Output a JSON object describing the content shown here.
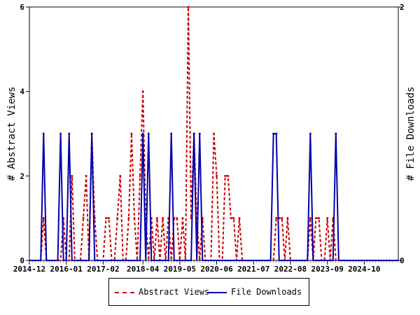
{
  "chart_data": {
    "type": "line",
    "x_labels": [
      "2014-12",
      "2016-01",
      "2017-02",
      "2018-04",
      "2019-05",
      "2020-06",
      "2021-07",
      "2022-08",
      "2023-09",
      "2024-10"
    ],
    "ylabel_left": "# Abstract Views",
    "ylabel_right": "# File Downloads",
    "ylim_left": [
      0,
      6
    ],
    "ylim_right": [
      0,
      2
    ],
    "yticks_left": [
      "0",
      "2",
      "4",
      "6"
    ],
    "yticks_right": [
      "0",
      "2"
    ],
    "grid": false,
    "legend_position": "bottom-center",
    "series": [
      {
        "name": "Abstract Views",
        "axis": "left",
        "color": "#cc0000",
        "style": "dashed",
        "points": [
          [
            "2015-04",
            0
          ],
          [
            "2015-05",
            1
          ],
          [
            "2015-06",
            0
          ],
          [
            "2015-11",
            0
          ],
          [
            "2015-12",
            1
          ],
          [
            "2016-01",
            0
          ],
          [
            "2016-03",
            2
          ],
          [
            "2016-04",
            0
          ],
          [
            "2016-05",
            0
          ],
          [
            "2016-07",
            1
          ],
          [
            "2016-08",
            2
          ],
          [
            "2016-09",
            0
          ],
          [
            "2016-10",
            3
          ],
          [
            "2016-11",
            1
          ],
          [
            "2016-12",
            0
          ],
          [
            "2017-02",
            0
          ],
          [
            "2017-03",
            1
          ],
          [
            "2017-04",
            1
          ],
          [
            "2017-05",
            0
          ],
          [
            "2017-07",
            1
          ],
          [
            "2017-08",
            2
          ],
          [
            "2017-09",
            0
          ],
          [
            "2017-10",
            0
          ],
          [
            "2017-11",
            1
          ],
          [
            "2017-12",
            3
          ],
          [
            "2018-01",
            1
          ],
          [
            "2018-02",
            0
          ],
          [
            "2018-03",
            2
          ],
          [
            "2018-04",
            4
          ],
          [
            "2018-05",
            1
          ],
          [
            "2018-06",
            0
          ],
          [
            "2018-07",
            1
          ],
          [
            "2018-08",
            0
          ],
          [
            "2018-09",
            1
          ],
          [
            "2018-10",
            0
          ],
          [
            "2018-11",
            1
          ],
          [
            "2018-12",
            0
          ],
          [
            "2019-01",
            1
          ],
          [
            "2019-02",
            0
          ],
          [
            "2019-03",
            1
          ],
          [
            "2019-04",
            1
          ],
          [
            "2019-05",
            0
          ],
          [
            "2019-06",
            1
          ],
          [
            "2019-07",
            0
          ],
          [
            "2019-08",
            6
          ],
          [
            "2019-09",
            1
          ],
          [
            "2019-10",
            3
          ],
          [
            "2019-11",
            1
          ],
          [
            "2019-12",
            0
          ],
          [
            "2020-01",
            1
          ],
          [
            "2020-02",
            0
          ],
          [
            "2020-05",
            3
          ],
          [
            "2020-06",
            2
          ],
          [
            "2020-07",
            0
          ],
          [
            "2020-09",
            2
          ],
          [
            "2020-10",
            2
          ],
          [
            "2020-11",
            1
          ],
          [
            "2020-12",
            1
          ],
          [
            "2021-01",
            0
          ],
          [
            "2021-02",
            1
          ],
          [
            "2021-03",
            0
          ],
          [
            "2022-02",
            0
          ],
          [
            "2022-03",
            1
          ],
          [
            "2022-04",
            1
          ],
          [
            "2022-05",
            1
          ],
          [
            "2022-06",
            0
          ],
          [
            "2022-07",
            1
          ],
          [
            "2022-08",
            0
          ],
          [
            "2023-02",
            0
          ],
          [
            "2023-03",
            1
          ],
          [
            "2023-04",
            0
          ],
          [
            "2023-05",
            1
          ],
          [
            "2023-06",
            1
          ],
          [
            "2023-07",
            0
          ],
          [
            "2023-09",
            1
          ],
          [
            "2023-10",
            0
          ],
          [
            "2023-11",
            1
          ],
          [
            "2023-12",
            0
          ]
        ]
      },
      {
        "name": "File Downloads",
        "axis": "right",
        "color": "#0000aa",
        "style": "solid",
        "points": [
          [
            "2015-04",
            0
          ],
          [
            "2015-05",
            1
          ],
          [
            "2015-06",
            0
          ],
          [
            "2015-10",
            0
          ],
          [
            "2015-11",
            1
          ],
          [
            "2015-12",
            0
          ],
          [
            "2016-01",
            0
          ],
          [
            "2016-02",
            1
          ],
          [
            "2016-03",
            0
          ],
          [
            "2016-09",
            0
          ],
          [
            "2016-10",
            1
          ],
          [
            "2016-11",
            0
          ],
          [
            "2018-03",
            0
          ],
          [
            "2018-04",
            1
          ],
          [
            "2018-05",
            0
          ],
          [
            "2018-06",
            1
          ],
          [
            "2018-07",
            0
          ],
          [
            "2019-01",
            0
          ],
          [
            "2019-02",
            1
          ],
          [
            "2019-03",
            0
          ],
          [
            "2019-09",
            0
          ],
          [
            "2019-10",
            1
          ],
          [
            "2019-11",
            0
          ],
          [
            "2019-12",
            1
          ],
          [
            "2020-01",
            0
          ],
          [
            "2022-01",
            0
          ],
          [
            "2022-02",
            1
          ],
          [
            "2022-03",
            1
          ],
          [
            "2022-04",
            0
          ],
          [
            "2023-02",
            0
          ],
          [
            "2023-03",
            1
          ],
          [
            "2023-04",
            0
          ],
          [
            "2023-11",
            0
          ],
          [
            "2023-12",
            1
          ],
          [
            "2024-01",
            0
          ]
        ]
      }
    ],
    "x_range": [
      "2014-12",
      "2025-10"
    ]
  },
  "legend": {
    "items": [
      "Abstract Views",
      "File Downloads"
    ]
  }
}
